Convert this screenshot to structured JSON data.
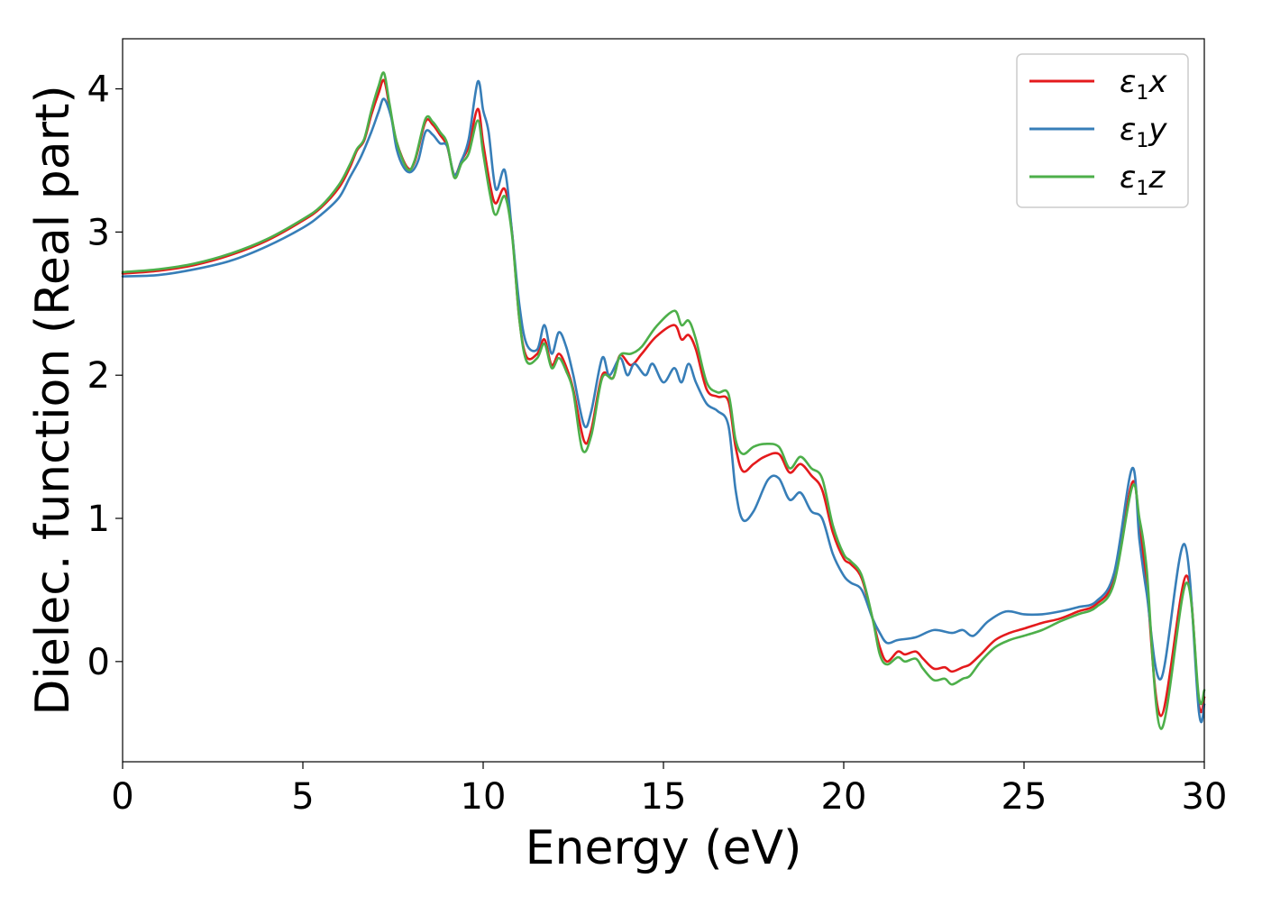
{
  "chart_data": {
    "type": "line",
    "xlabel": "Energy (eV)",
    "ylabel": "Dielec. function (Real part)",
    "xlim": [
      0,
      30
    ],
    "ylim": [
      -0.7,
      4.35
    ],
    "xticks": [
      "0",
      "5",
      "10",
      "15",
      "20",
      "25",
      "30"
    ],
    "yticks": [
      "0",
      "1",
      "2",
      "3",
      "4"
    ],
    "grid": false,
    "legend_position": "top-right",
    "series": [
      {
        "name": "ε1x",
        "legend": {
          "symbol": "ε",
          "sub": "1",
          "suffix": "x"
        },
        "color": "#e41a1c",
        "points": [
          [
            0,
            2.71
          ],
          [
            1,
            2.73
          ],
          [
            2,
            2.77
          ],
          [
            3,
            2.84
          ],
          [
            4,
            2.94
          ],
          [
            5,
            3.08
          ],
          [
            5.5,
            3.17
          ],
          [
            6,
            3.31
          ],
          [
            6.3,
            3.45
          ],
          [
            6.5,
            3.57
          ],
          [
            6.7,
            3.64
          ],
          [
            6.9,
            3.82
          ],
          [
            7.1,
            3.97
          ],
          [
            7.25,
            4.06
          ],
          [
            7.4,
            3.88
          ],
          [
            7.6,
            3.63
          ],
          [
            7.9,
            3.45
          ],
          [
            8.1,
            3.49
          ],
          [
            8.4,
            3.77
          ],
          [
            8.6,
            3.75
          ],
          [
            8.8,
            3.68
          ],
          [
            9.0,
            3.6
          ],
          [
            9.2,
            3.4
          ],
          [
            9.4,
            3.5
          ],
          [
            9.6,
            3.6
          ],
          [
            9.85,
            3.86
          ],
          [
            10.0,
            3.62
          ],
          [
            10.2,
            3.32
          ],
          [
            10.35,
            3.2
          ],
          [
            10.6,
            3.3
          ],
          [
            10.8,
            3.0
          ],
          [
            11.0,
            2.4
          ],
          [
            11.2,
            2.13
          ],
          [
            11.5,
            2.15
          ],
          [
            11.7,
            2.25
          ],
          [
            11.9,
            2.07
          ],
          [
            12.1,
            2.15
          ],
          [
            12.3,
            2.06
          ],
          [
            12.5,
            1.9
          ],
          [
            12.8,
            1.54
          ],
          [
            13.0,
            1.62
          ],
          [
            13.3,
            2.0
          ],
          [
            13.6,
            1.98
          ],
          [
            13.8,
            2.14
          ],
          [
            14.1,
            2.07
          ],
          [
            14.4,
            2.15
          ],
          [
            14.8,
            2.27
          ],
          [
            15.3,
            2.35
          ],
          [
            15.5,
            2.25
          ],
          [
            15.7,
            2.28
          ],
          [
            15.9,
            2.18
          ],
          [
            16.2,
            1.9
          ],
          [
            16.5,
            1.85
          ],
          [
            16.8,
            1.82
          ],
          [
            17.0,
            1.5
          ],
          [
            17.2,
            1.33
          ],
          [
            17.5,
            1.38
          ],
          [
            17.8,
            1.43
          ],
          [
            18.2,
            1.45
          ],
          [
            18.5,
            1.32
          ],
          [
            18.8,
            1.38
          ],
          [
            19.1,
            1.3
          ],
          [
            19.4,
            1.2
          ],
          [
            19.7,
            0.9
          ],
          [
            20.0,
            0.72
          ],
          [
            20.2,
            0.68
          ],
          [
            20.5,
            0.58
          ],
          [
            20.8,
            0.3
          ],
          [
            21.0,
            0.1
          ],
          [
            21.2,
            0.0
          ],
          [
            21.5,
            0.07
          ],
          [
            21.7,
            0.05
          ],
          [
            22.0,
            0.07
          ],
          [
            22.2,
            0.02
          ],
          [
            22.5,
            -0.05
          ],
          [
            22.8,
            -0.04
          ],
          [
            23.0,
            -0.07
          ],
          [
            23.3,
            -0.04
          ],
          [
            23.5,
            -0.02
          ],
          [
            23.8,
            0.05
          ],
          [
            24.2,
            0.15
          ],
          [
            24.6,
            0.2
          ],
          [
            25.0,
            0.23
          ],
          [
            25.5,
            0.27
          ],
          [
            26.0,
            0.3
          ],
          [
            26.5,
            0.35
          ],
          [
            27.0,
            0.4
          ],
          [
            27.5,
            0.58
          ],
          [
            28.0,
            1.25
          ],
          [
            28.2,
            0.95
          ],
          [
            28.4,
            0.55
          ],
          [
            28.8,
            -0.38
          ],
          [
            29.5,
            0.6
          ],
          [
            29.85,
            -0.3
          ],
          [
            30,
            -0.25
          ]
        ]
      },
      {
        "name": "ε1y",
        "legend": {
          "symbol": "ε",
          "sub": "1",
          "suffix": "y"
        },
        "color": "#377eb8",
        "points": [
          [
            0,
            2.69
          ],
          [
            1,
            2.7
          ],
          [
            2,
            2.74
          ],
          [
            3,
            2.8
          ],
          [
            4,
            2.9
          ],
          [
            5,
            3.03
          ],
          [
            5.5,
            3.12
          ],
          [
            6,
            3.24
          ],
          [
            6.3,
            3.38
          ],
          [
            6.6,
            3.52
          ],
          [
            6.9,
            3.7
          ],
          [
            7.1,
            3.84
          ],
          [
            7.25,
            3.93
          ],
          [
            7.45,
            3.8
          ],
          [
            7.6,
            3.58
          ],
          [
            7.8,
            3.45
          ],
          [
            8.0,
            3.42
          ],
          [
            8.2,
            3.5
          ],
          [
            8.4,
            3.7
          ],
          [
            8.6,
            3.68
          ],
          [
            8.8,
            3.62
          ],
          [
            9.0,
            3.6
          ],
          [
            9.2,
            3.4
          ],
          [
            9.4,
            3.5
          ],
          [
            9.6,
            3.65
          ],
          [
            9.85,
            4.05
          ],
          [
            10.0,
            3.85
          ],
          [
            10.15,
            3.7
          ],
          [
            10.35,
            3.3
          ],
          [
            10.6,
            3.43
          ],
          [
            10.8,
            3.0
          ],
          [
            11.0,
            2.5
          ],
          [
            11.2,
            2.22
          ],
          [
            11.5,
            2.18
          ],
          [
            11.7,
            2.35
          ],
          [
            11.9,
            2.15
          ],
          [
            12.1,
            2.3
          ],
          [
            12.3,
            2.2
          ],
          [
            12.5,
            2.0
          ],
          [
            12.8,
            1.65
          ],
          [
            13.0,
            1.75
          ],
          [
            13.3,
            2.12
          ],
          [
            13.5,
            2.0
          ],
          [
            13.8,
            2.12
          ],
          [
            14.0,
            2.0
          ],
          [
            14.2,
            2.08
          ],
          [
            14.5,
            2.0
          ],
          [
            14.7,
            2.08
          ],
          [
            15.0,
            1.95
          ],
          [
            15.3,
            2.05
          ],
          [
            15.5,
            1.95
          ],
          [
            15.7,
            2.08
          ],
          [
            15.9,
            1.95
          ],
          [
            16.2,
            1.8
          ],
          [
            16.5,
            1.75
          ],
          [
            16.8,
            1.65
          ],
          [
            17.0,
            1.2
          ],
          [
            17.2,
            0.99
          ],
          [
            17.5,
            1.05
          ],
          [
            17.9,
            1.27
          ],
          [
            18.2,
            1.28
          ],
          [
            18.5,
            1.13
          ],
          [
            18.8,
            1.18
          ],
          [
            19.1,
            1.05
          ],
          [
            19.4,
            1.0
          ],
          [
            19.7,
            0.75
          ],
          [
            20.0,
            0.6
          ],
          [
            20.2,
            0.55
          ],
          [
            20.5,
            0.5
          ],
          [
            20.8,
            0.3
          ],
          [
            21.0,
            0.2
          ],
          [
            21.2,
            0.13
          ],
          [
            21.5,
            0.15
          ],
          [
            22.0,
            0.17
          ],
          [
            22.5,
            0.22
          ],
          [
            23.0,
            0.2
          ],
          [
            23.3,
            0.22
          ],
          [
            23.6,
            0.18
          ],
          [
            24.0,
            0.28
          ],
          [
            24.5,
            0.35
          ],
          [
            25.0,
            0.33
          ],
          [
            25.5,
            0.33
          ],
          [
            26.0,
            0.35
          ],
          [
            26.5,
            0.38
          ],
          [
            27.0,
            0.42
          ],
          [
            27.5,
            0.62
          ],
          [
            28.0,
            1.35
          ],
          [
            28.2,
            0.85
          ],
          [
            28.4,
            0.48
          ],
          [
            28.8,
            -0.12
          ],
          [
            29.45,
            0.82
          ],
          [
            29.85,
            -0.35
          ],
          [
            30,
            -0.3
          ]
        ]
      },
      {
        "name": "ε1z",
        "legend": {
          "symbol": "ε",
          "sub": "1",
          "suffix": "z"
        },
        "color": "#4daf4a",
        "points": [
          [
            0,
            2.72
          ],
          [
            1,
            2.74
          ],
          [
            2,
            2.78
          ],
          [
            3,
            2.85
          ],
          [
            4,
            2.95
          ],
          [
            5,
            3.09
          ],
          [
            5.5,
            3.18
          ],
          [
            6,
            3.33
          ],
          [
            6.3,
            3.47
          ],
          [
            6.5,
            3.58
          ],
          [
            6.7,
            3.65
          ],
          [
            6.9,
            3.85
          ],
          [
            7.1,
            4.02
          ],
          [
            7.25,
            4.11
          ],
          [
            7.4,
            3.9
          ],
          [
            7.6,
            3.63
          ],
          [
            7.9,
            3.44
          ],
          [
            8.1,
            3.5
          ],
          [
            8.4,
            3.79
          ],
          [
            8.6,
            3.77
          ],
          [
            8.8,
            3.7
          ],
          [
            9.0,
            3.62
          ],
          [
            9.2,
            3.38
          ],
          [
            9.4,
            3.48
          ],
          [
            9.6,
            3.55
          ],
          [
            9.85,
            3.78
          ],
          [
            10.0,
            3.55
          ],
          [
            10.2,
            3.25
          ],
          [
            10.35,
            3.12
          ],
          [
            10.6,
            3.25
          ],
          [
            10.8,
            2.98
          ],
          [
            11.0,
            2.4
          ],
          [
            11.2,
            2.1
          ],
          [
            11.5,
            2.12
          ],
          [
            11.7,
            2.22
          ],
          [
            11.9,
            2.05
          ],
          [
            12.1,
            2.12
          ],
          [
            12.3,
            2.03
          ],
          [
            12.5,
            1.88
          ],
          [
            12.75,
            1.48
          ],
          [
            13.0,
            1.58
          ],
          [
            13.3,
            1.98
          ],
          [
            13.6,
            1.98
          ],
          [
            13.8,
            2.14
          ],
          [
            14.1,
            2.15
          ],
          [
            14.4,
            2.2
          ],
          [
            14.8,
            2.34
          ],
          [
            15.3,
            2.45
          ],
          [
            15.5,
            2.35
          ],
          [
            15.7,
            2.38
          ],
          [
            15.9,
            2.25
          ],
          [
            16.2,
            1.95
          ],
          [
            16.5,
            1.88
          ],
          [
            16.8,
            1.87
          ],
          [
            17.0,
            1.55
          ],
          [
            17.2,
            1.45
          ],
          [
            17.5,
            1.5
          ],
          [
            17.8,
            1.52
          ],
          [
            18.2,
            1.5
          ],
          [
            18.5,
            1.35
          ],
          [
            18.8,
            1.43
          ],
          [
            19.1,
            1.35
          ],
          [
            19.4,
            1.28
          ],
          [
            19.7,
            0.95
          ],
          [
            20.0,
            0.75
          ],
          [
            20.2,
            0.7
          ],
          [
            20.5,
            0.6
          ],
          [
            20.8,
            0.3
          ],
          [
            21.0,
            0.05
          ],
          [
            21.2,
            -0.02
          ],
          [
            21.5,
            0.03
          ],
          [
            21.7,
            0.0
          ],
          [
            22.0,
            0.02
          ],
          [
            22.2,
            -0.05
          ],
          [
            22.5,
            -0.13
          ],
          [
            22.8,
            -0.12
          ],
          [
            23.0,
            -0.16
          ],
          [
            23.3,
            -0.12
          ],
          [
            23.5,
            -0.1
          ],
          [
            23.8,
            0.0
          ],
          [
            24.2,
            0.1
          ],
          [
            24.6,
            0.15
          ],
          [
            25.0,
            0.18
          ],
          [
            25.5,
            0.22
          ],
          [
            26.0,
            0.28
          ],
          [
            26.5,
            0.33
          ],
          [
            27.0,
            0.38
          ],
          [
            27.5,
            0.55
          ],
          [
            28.0,
            1.22
          ],
          [
            28.2,
            1.0
          ],
          [
            28.4,
            0.65
          ],
          [
            28.8,
            -0.47
          ],
          [
            29.5,
            0.55
          ],
          [
            29.85,
            -0.25
          ],
          [
            30,
            -0.2
          ]
        ]
      }
    ]
  }
}
